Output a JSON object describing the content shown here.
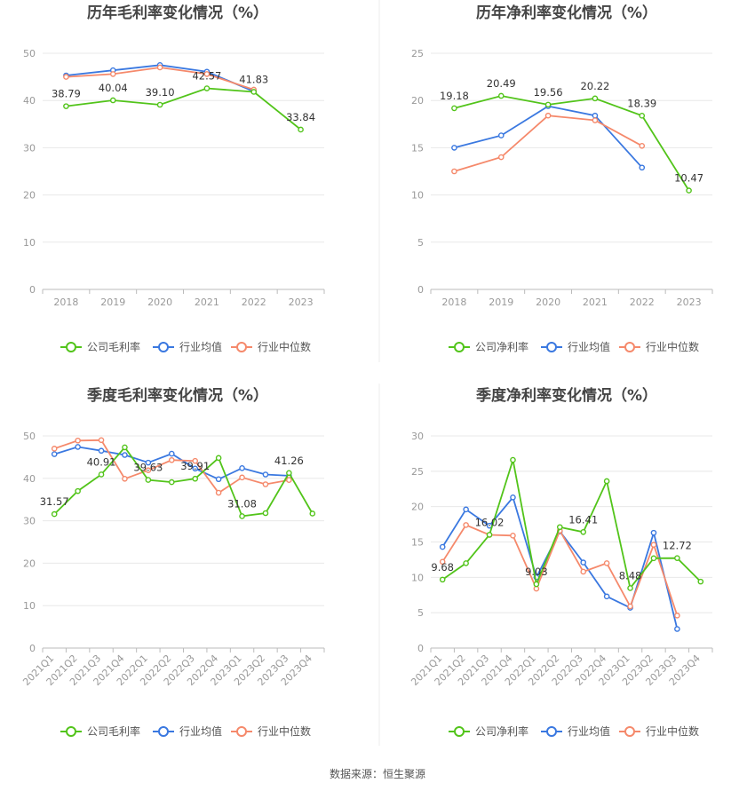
{
  "colors": {
    "company": "#52c41a",
    "industry_avg": "#3a78e0",
    "industry_median": "#f5896b",
    "grid": "#e8e8e8",
    "axis": "#bbbbbb",
    "divider": "#eeeeee"
  },
  "legend_labels": {
    "company_gross": "公司毛利率",
    "company_net": "公司净利率",
    "industry_avg": "行业均值",
    "industry_median": "行业中位数"
  },
  "source_text": "数据来源：恒生聚源",
  "chart_data": [
    {
      "type": "line",
      "title": "历年毛利率变化情况（%）",
      "categories": [
        "2018",
        "2019",
        "2020",
        "2021",
        "2022",
        "2023"
      ],
      "ylim": [
        0,
        50
      ],
      "yticks": [
        0,
        10,
        20,
        30,
        40,
        50
      ],
      "grid": true,
      "legend_position": "bottom-center",
      "series": [
        {
          "name": "公司毛利率",
          "role": "company",
          "values": [
            38.79,
            40.04,
            39.1,
            42.57,
            41.83,
            33.84
          ],
          "labels": [
            "38.79",
            "40.04",
            "39.10",
            "42.57",
            "41.83",
            "33.84"
          ]
        },
        {
          "name": "行业均值",
          "role": "industry_avg",
          "values": [
            45.3,
            46.4,
            47.5,
            46.1,
            41.9,
            null
          ]
        },
        {
          "name": "行业中位数",
          "role": "industry_median",
          "values": [
            45.0,
            45.6,
            47.0,
            45.6,
            42.3,
            null
          ]
        }
      ]
    },
    {
      "type": "line",
      "title": "历年净利率变化情况（%）",
      "categories": [
        "2018",
        "2019",
        "2020",
        "2021",
        "2022",
        "2023"
      ],
      "ylim": [
        0,
        25
      ],
      "yticks": [
        0,
        5,
        10,
        15,
        20,
        25
      ],
      "grid": true,
      "legend_position": "bottom-center",
      "series": [
        {
          "name": "公司净利率",
          "role": "company",
          "values": [
            19.18,
            20.49,
            19.56,
            20.22,
            18.39,
            10.47
          ],
          "labels": [
            "19.18",
            "20.49",
            "19.56",
            "20.22",
            "18.39",
            "10.47"
          ]
        },
        {
          "name": "行业均值",
          "role": "industry_avg",
          "values": [
            15.0,
            16.3,
            19.4,
            18.4,
            12.9,
            null
          ]
        },
        {
          "name": "行业中位数",
          "role": "industry_median",
          "values": [
            12.5,
            14.0,
            18.4,
            17.9,
            15.2,
            null
          ]
        }
      ]
    },
    {
      "type": "line",
      "title": "季度毛利率变化情况（%）",
      "categories": [
        "2021Q1",
        "2021Q2",
        "2021Q3",
        "2021Q4",
        "2022Q1",
        "2022Q2",
        "2022Q3",
        "2022Q4",
        "2023Q1",
        "2023Q2",
        "2023Q3",
        "2023Q4"
      ],
      "ylim": [
        0,
        50
      ],
      "yticks": [
        0,
        10,
        20,
        30,
        40,
        50
      ],
      "grid": true,
      "legend_position": "bottom-center",
      "series": [
        {
          "name": "公司毛利率",
          "role": "company",
          "values": [
            31.57,
            37.0,
            40.91,
            47.3,
            39.63,
            39.1,
            39.91,
            44.8,
            31.08,
            31.8,
            41.26,
            31.7
          ],
          "labels": [
            "31.57",
            "",
            "40.91",
            "",
            "39.63",
            "",
            "39.91",
            "",
            "31.08",
            "",
            "41.26",
            ""
          ]
        },
        {
          "name": "行业均值",
          "role": "industry_avg",
          "values": [
            45.7,
            47.4,
            46.5,
            45.5,
            43.7,
            45.8,
            42.3,
            39.8,
            42.4,
            40.9,
            40.6,
            null
          ]
        },
        {
          "name": "行业中位数",
          "role": "industry_median",
          "values": [
            47.0,
            48.9,
            49.0,
            39.9,
            41.9,
            44.3,
            44.1,
            36.6,
            40.2,
            38.6,
            39.6,
            null
          ]
        }
      ]
    },
    {
      "type": "line",
      "title": "季度净利率变化情况（%）",
      "categories": [
        "2021Q1",
        "2021Q2",
        "2021Q3",
        "2021Q4",
        "2022Q1",
        "2022Q2",
        "2022Q3",
        "2022Q4",
        "2023Q1",
        "2023Q2",
        "2023Q3",
        "2023Q4"
      ],
      "ylim": [
        0,
        30
      ],
      "yticks": [
        0,
        5,
        10,
        15,
        20,
        25,
        30
      ],
      "grid": true,
      "legend_position": "bottom-center",
      "series": [
        {
          "name": "公司净利率",
          "role": "company",
          "values": [
            9.68,
            12.0,
            16.02,
            26.6,
            9.03,
            17.1,
            16.41,
            23.6,
            8.48,
            12.7,
            12.72,
            9.4
          ],
          "labels": [
            "9.68",
            "",
            "16.02",
            "",
            "9.03",
            "",
            "16.41",
            "",
            "8.48",
            "",
            "12.72",
            ""
          ]
        },
        {
          "name": "行业均值",
          "role": "industry_avg",
          "values": [
            14.3,
            19.6,
            17.3,
            21.3,
            10.0,
            16.5,
            12.1,
            7.3,
            5.7,
            16.3,
            2.7,
            null
          ]
        },
        {
          "name": "行业中位数",
          "role": "industry_median",
          "values": [
            12.2,
            17.4,
            16.0,
            15.9,
            8.4,
            16.6,
            10.8,
            12.0,
            5.9,
            14.6,
            4.6,
            null
          ]
        }
      ]
    }
  ]
}
